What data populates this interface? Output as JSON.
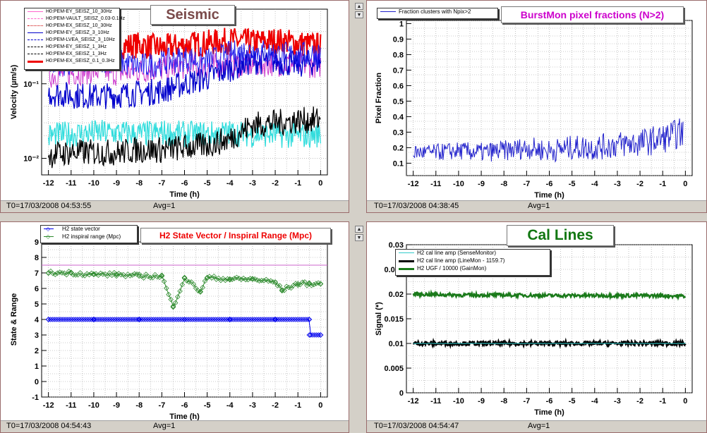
{
  "panels": [
    {
      "id": "seismic",
      "title": "Seismic",
      "title_color": "#7a4a4a",
      "footer_time": "T0=17/03/2008 04:53:55",
      "footer_avg": "Avg=1",
      "legend": [
        {
          "label": "H0:PEM-EY_SEISZ_10_30Hz",
          "color": "#ff66cc",
          "style": "solid"
        },
        {
          "label": "H0:PEM-VAULT_SEISZ_0.03-0.1Hz",
          "color": "#ff66cc",
          "style": "dash"
        },
        {
          "label": "H0:PEM-EX_SEISZ_10_30Hz",
          "color": "#cc0000",
          "style": "dashdot"
        },
        {
          "label": "H0:PEM-EY_SEISZ_3_10Hz",
          "color": "#0000cc",
          "style": "solid"
        },
        {
          "label": "H0:PEM-LVEA_SEISZ_3_10Hz",
          "color": "#0000cc",
          "style": "dash"
        },
        {
          "label": "H0:PEM-EY_SEISZ_1_3Hz",
          "color": "#000000",
          "style": "dash"
        },
        {
          "label": "H0:PEM-EX_SEISZ_1_3Hz",
          "color": "#000000",
          "style": "dash"
        },
        {
          "label": "H0:PEM-EX_SEISZ_0.1_0.3Hz",
          "color": "#ee0000",
          "style": "thick"
        }
      ]
    },
    {
      "id": "burstmon",
      "title": "BurstMon pixel fractions (N>2)",
      "title_color": "#cc00cc",
      "footer_time": "T0=17/03/2008 04:38:45",
      "footer_avg": "Avg=1",
      "legend": [
        {
          "label": "Fraction clusters with Npix>2",
          "color": "#2222cc",
          "style": "solid"
        }
      ]
    },
    {
      "id": "h2state",
      "title": "H2 State Vector / Inspiral Range (Mpc)",
      "title_color": "#ee0000",
      "footer_time": "T0=17/03/2008 04:54:43",
      "footer_avg": "Avg=1",
      "legend": [
        {
          "label": "H2 state vector",
          "color": "#0000ee",
          "style": "marker"
        },
        {
          "label": "H2 inspiral range (Mpc)",
          "color": "#2e8b2e",
          "style": "marker"
        }
      ]
    },
    {
      "id": "callines",
      "title": "Cal Lines",
      "title_color": "#117711",
      "footer_time": "T0=17/03/2008 04:54:47",
      "footer_avg": "Avg=1",
      "legend": [
        {
          "label": "H2 cal line amp (SenseMonitor)",
          "color": "#33cccc",
          "style": "solid"
        },
        {
          "label": "H2 cal line amp (LineMon - 1159.7)",
          "color": "#000000",
          "style": "thick"
        },
        {
          "label": "H2 UGF / 10000 (GainMon)",
          "color": "#1a7a1a",
          "style": "thick"
        }
      ]
    }
  ],
  "chart_data": [
    {
      "type": "line",
      "title": "Seismic",
      "xlabel": "Time (h)",
      "ylabel": "Velocity (µm/s)",
      "xlim": [
        -12.3,
        0.3
      ],
      "ylim": [
        0.006,
        1.0
      ],
      "yscale": "log",
      "x_ticks": [
        -12,
        -11,
        -10,
        -9,
        -8,
        -7,
        -6,
        -5,
        -4,
        -3,
        -2,
        -1,
        0
      ],
      "x_ticklabels": [
        "-12",
        "-11",
        "-10",
        "-9",
        "-8",
        "-7",
        "-6",
        "-5",
        "-4",
        "-3",
        "-2",
        "-1",
        "0"
      ],
      "y_ticks": [
        0.01,
        0.1
      ],
      "y_ticklabels": [
        "10⁻²",
        "10⁻¹"
      ],
      "grid": true,
      "series": [
        {
          "name": "H0:PEM-EX_SEISZ_0.1_0.3Hz",
          "color": "#ee0000",
          "width": 2,
          "x": [
            -12,
            -11,
            -10,
            -9,
            -8,
            -7,
            -6,
            -5,
            -4,
            -3,
            -2,
            -1,
            0
          ],
          "y": [
            0.3,
            0.33,
            0.3,
            0.32,
            0.33,
            0.3,
            0.33,
            0.35,
            0.38,
            0.36,
            0.38,
            0.35,
            0.32
          ]
        },
        {
          "name": "H0:PEM-EY_SEISZ_10_30Hz",
          "color": "#cc33cc",
          "width": 1,
          "x": [
            -12,
            -11,
            -10,
            -9,
            -8,
            -7,
            -6,
            -5,
            -4,
            -3,
            -2,
            -1,
            0
          ],
          "y": [
            0.13,
            0.14,
            0.15,
            0.14,
            0.15,
            0.16,
            0.17,
            0.17,
            0.18,
            0.18,
            0.19,
            0.18,
            0.18
          ]
        },
        {
          "name": "H0:PEM-EY_SEISZ_3_10Hz",
          "color": "#0000cc",
          "width": 1.3,
          "x": [
            -12,
            -11,
            -10,
            -9,
            -8,
            -7,
            -6,
            -5,
            -4,
            -3,
            -2,
            -1,
            0
          ],
          "y": [
            0.075,
            0.07,
            0.068,
            0.07,
            0.075,
            0.08,
            0.1,
            0.12,
            0.16,
            0.2,
            0.2,
            0.18,
            0.2
          ]
        },
        {
          "name": "H0:PEM-LVEA_SEISZ_3_10Hz",
          "color": "#2222ee",
          "width": 1,
          "x": [
            -12,
            -11,
            -10,
            -9,
            -8,
            -7,
            -6,
            -5,
            -4,
            -3,
            -2,
            -1,
            0
          ],
          "y": [
            0.2,
            0.18,
            0.22,
            0.2,
            0.17,
            0.19,
            0.22,
            0.2,
            0.25,
            0.28,
            0.25,
            0.24,
            0.26
          ]
        },
        {
          "name": "H0:PEM-EY_SEISZ_1_3Hz",
          "color": "#33dddd",
          "width": 1.3,
          "x": [
            -12,
            -11,
            -10,
            -9,
            -8,
            -7,
            -6,
            -5,
            -4,
            -3,
            -2,
            -1,
            0
          ],
          "y": [
            0.02,
            0.021,
            0.022,
            0.022,
            0.021,
            0.022,
            0.021,
            0.021,
            0.022,
            0.021,
            0.021,
            0.02,
            0.021
          ]
        },
        {
          "name": "H0:PEM-EX_SEISZ_1_3Hz",
          "color": "#000000",
          "width": 1.3,
          "x": [
            -12,
            -11,
            -10,
            -9,
            -8,
            -7,
            -6,
            -5,
            -4,
            -3,
            -2,
            -1,
            0
          ],
          "y": [
            0.011,
            0.012,
            0.012,
            0.012,
            0.013,
            0.013,
            0.014,
            0.015,
            0.018,
            0.028,
            0.03,
            0.032,
            0.033
          ]
        }
      ]
    },
    {
      "type": "line",
      "title": "BurstMon pixel fractions (N>2)",
      "xlabel": "Time (h)",
      "ylabel": "Pixel Fraction",
      "xlim": [
        -12.3,
        0.3
      ],
      "ylim": [
        0.02,
        1.02
      ],
      "x_ticks": [
        -12,
        -11,
        -10,
        -9,
        -8,
        -7,
        -6,
        -5,
        -4,
        -3,
        -2,
        -1,
        0
      ],
      "x_ticklabels": [
        "-12",
        "-11",
        "-10",
        "-9",
        "-8",
        "-7",
        "-6",
        "-5",
        "-4",
        "-3",
        "-2",
        "-1",
        "0"
      ],
      "y_ticks": [
        0.1,
        0.2,
        0.3,
        0.4,
        0.5,
        0.6,
        0.7,
        0.8,
        0.9,
        1
      ],
      "y_ticklabels": [
        "0.1",
        "0.2",
        "0.3",
        "0.4",
        "0.5",
        "0.6",
        "0.7",
        "0.8",
        "0.9",
        "1"
      ],
      "grid": true,
      "series": [
        {
          "name": "Fraction clusters with Npix>2",
          "color": "#2222cc",
          "width": 1,
          "x": [
            -12,
            -11,
            -10,
            -9,
            -8,
            -7,
            -6,
            -5,
            -4,
            -3,
            -2,
            -1,
            -0.1
          ],
          "y": [
            0.17,
            0.17,
            0.18,
            0.17,
            0.18,
            0.2,
            0.18,
            0.2,
            0.2,
            0.22,
            0.23,
            0.26,
            0.3
          ]
        }
      ]
    },
    {
      "type": "scatter",
      "title": "H2 State Vector / Inspiral Range (Mpc)",
      "xlabel": "Time (h)",
      "ylabel": "State & Range",
      "xlim": [
        -12.3,
        0.3
      ],
      "ylim": [
        -1,
        9
      ],
      "x_ticks": [
        -12,
        -11,
        -10,
        -9,
        -8,
        -7,
        -6,
        -5,
        -4,
        -3,
        -2,
        -1,
        0
      ],
      "x_ticklabels": [
        "-12",
        "-11",
        "-10",
        "-9",
        "-8",
        "-7",
        "-6",
        "-5",
        "-4",
        "-3",
        "-2",
        "-1",
        "0"
      ],
      "y_ticks": [
        -1,
        0,
        1,
        2,
        3,
        4,
        5,
        6,
        7,
        8,
        9
      ],
      "y_ticklabels": [
        "-1",
        "0",
        "1",
        "2",
        "3",
        "4",
        "5",
        "6",
        "7",
        "8",
        "9"
      ],
      "grid": true,
      "reference_line": {
        "y": 7.5,
        "color": "#cc66cc"
      },
      "series": [
        {
          "name": "H2 inspiral range (Mpc)",
          "color": "#2e8b2e",
          "marker": "diamond",
          "x": [
            -12,
            -11,
            -10,
            -9,
            -8,
            -7,
            -6.5,
            -6,
            -5.3,
            -5,
            -4,
            -3,
            -2,
            -1.7,
            -1,
            -0.5,
            0
          ],
          "y": [
            7.0,
            7.0,
            6.9,
            6.9,
            6.8,
            6.8,
            4.8,
            6.7,
            5.8,
            6.7,
            6.6,
            6.6,
            6.4,
            5.9,
            6.3,
            6.3,
            6.3
          ]
        },
        {
          "name": "H2 state vector",
          "color": "#0000ee",
          "marker": "diamond",
          "x": [
            -12,
            -10,
            -8,
            -6,
            -4,
            -2,
            -0.5,
            -0.49,
            0
          ],
          "y": [
            4,
            4,
            4,
            4,
            4,
            4,
            4,
            3,
            3
          ]
        }
      ]
    },
    {
      "type": "line",
      "title": "Cal Lines",
      "xlabel": "Time (h)",
      "ylabel": "Signal (*)",
      "xlim": [
        -12.3,
        0.3
      ],
      "ylim": [
        0,
        0.03
      ],
      "x_ticks": [
        -12,
        -11,
        -10,
        -9,
        -8,
        -7,
        -6,
        -5,
        -4,
        -3,
        -2,
        -1,
        0
      ],
      "x_ticklabels": [
        "-12",
        "-11",
        "-10",
        "-9",
        "-8",
        "-7",
        "-6",
        "-5",
        "-4",
        "-3",
        "-2",
        "-1",
        "0"
      ],
      "y_ticks": [
        0,
        0.005,
        0.01,
        0.015,
        0.02,
        0.025,
        0.03
      ],
      "y_ticklabels": [
        "0",
        "0.005",
        "0.01",
        "0.015",
        "0.02",
        "0.025",
        "0.03"
      ],
      "grid": true,
      "series": [
        {
          "name": "H2 UGF / 10000 (GainMon)",
          "color": "#1a7a1a",
          "width": 2.5,
          "x": [
            -12,
            -10,
            -8,
            -6,
            -4,
            -2,
            0
          ],
          "y": [
            0.02,
            0.0198,
            0.0198,
            0.0197,
            0.0197,
            0.0197,
            0.0196
          ]
        },
        {
          "name": "H2 cal line amp (LineMon - 1159.7)",
          "color": "#000000",
          "width": 3,
          "x": [
            -12,
            -10,
            -8,
            -6,
            -4,
            -2,
            0
          ],
          "y": [
            0.01,
            0.01,
            0.01,
            0.01,
            0.01,
            0.01,
            0.01
          ]
        },
        {
          "name": "H2 cal line amp (SenseMonitor)",
          "color": "#33cccc",
          "width": 1,
          "x": [
            -12,
            -10,
            -8,
            -6,
            -4,
            -2,
            0
          ],
          "y": [
            0.01,
            0.01,
            0.01,
            0.01,
            0.01,
            0.01,
            0.01
          ]
        }
      ]
    }
  ]
}
